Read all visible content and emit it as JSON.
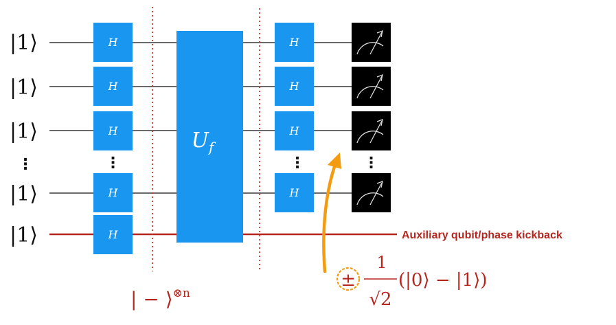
{
  "colors": {
    "gate": "#1996f0",
    "wire": "#111111",
    "ancilla_wire": "#b5261e",
    "barrier": "#c0392b",
    "meter_bg": "#000000",
    "highlight": "#f39c12",
    "annotation": "#b5261e"
  },
  "qubits": [
    {
      "label": "|1⟩",
      "role": "input"
    },
    {
      "label": "|1⟩",
      "role": "input"
    },
    {
      "label": "|1⟩",
      "role": "input"
    },
    {
      "label": "⋮",
      "role": "ellipsis"
    },
    {
      "label": "|1⟩",
      "role": "input"
    },
    {
      "label": "|1⟩",
      "role": "ancilla"
    }
  ],
  "gates": {
    "hadamard_label": "H",
    "oracle_label": "U",
    "oracle_subscript": "f",
    "column_ellipsis": "⋮"
  },
  "meters": {
    "icon": "meter-icon"
  },
  "annotations": {
    "aux_label": "Auxiliary qubit/phase kickback",
    "minus_state": "| − ⟩",
    "minus_exponent": "⊗n",
    "kickback_sign": "±",
    "kickback_numerator": "1",
    "kickback_denominator": "√2",
    "kickback_state": "(|0⟩ − |1⟩)"
  }
}
